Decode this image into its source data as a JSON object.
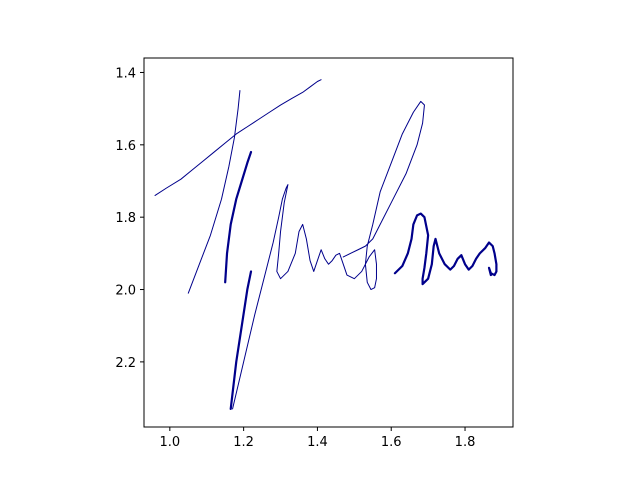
{
  "chart_data": {
    "type": "line",
    "title": "",
    "xlabel": "",
    "ylabel": "",
    "xlim": [
      0.93,
      1.93
    ],
    "ylim": [
      2.38,
      1.36
    ],
    "y_inverted": true,
    "grid": false,
    "xticks": [
      {
        "value": 1.0,
        "label": "1.0"
      },
      {
        "value": 1.2,
        "label": "1.2"
      },
      {
        "value": 1.4,
        "label": "1.4"
      },
      {
        "value": 1.6,
        "label": "1.6"
      },
      {
        "value": 1.8,
        "label": "1.8"
      }
    ],
    "yticks": [
      {
        "value": 1.4,
        "label": "1.4"
      },
      {
        "value": 1.6,
        "label": "1.6"
      },
      {
        "value": 1.8,
        "label": "1.8"
      },
      {
        "value": 2.0,
        "label": "2.0"
      },
      {
        "value": 2.2,
        "label": "2.2"
      }
    ],
    "line_color": "#00008b",
    "series": [
      {
        "weight": "thin",
        "x": [
          0.96,
          0.99,
          1.03,
          1.06,
          1.09,
          1.12,
          1.15,
          1.18,
          1.21,
          1.24,
          1.27,
          1.3,
          1.33,
          1.36,
          1.38,
          1.4,
          1.41
        ],
        "y": [
          1.74,
          1.72,
          1.695,
          1.67,
          1.645,
          1.62,
          1.595,
          1.57,
          1.55,
          1.53,
          1.51,
          1.49,
          1.472,
          1.455,
          1.44,
          1.425,
          1.42
        ]
      },
      {
        "weight": "thin",
        "x": [
          1.05,
          1.08,
          1.11,
          1.14,
          1.16,
          1.175,
          1.185,
          1.19
        ],
        "y": [
          2.01,
          1.93,
          1.85,
          1.75,
          1.66,
          1.58,
          1.5,
          1.45
        ]
      },
      {
        "weight": "thick",
        "x": [
          1.15,
          1.155,
          1.165,
          1.18,
          1.195,
          1.21,
          1.22
        ],
        "y": [
          1.98,
          1.9,
          1.82,
          1.75,
          1.7,
          1.65,
          1.62
        ]
      },
      {
        "weight": "thin",
        "x": [
          1.17,
          1.2,
          1.23,
          1.26,
          1.28,
          1.295,
          1.305,
          1.315,
          1.32,
          1.31,
          1.3,
          1.295,
          1.29,
          1.3,
          1.32,
          1.34,
          1.35,
          1.36,
          1.37,
          1.38,
          1.39,
          1.4,
          1.41,
          1.42,
          1.43,
          1.44,
          1.45,
          1.46,
          1.47,
          1.48,
          1.5,
          1.52,
          1.54,
          1.555,
          1.56,
          1.56,
          1.555,
          1.545,
          1.535,
          1.53,
          1.535,
          1.55,
          1.57,
          1.6,
          1.63,
          1.66,
          1.68,
          1.69,
          1.685,
          1.67,
          1.64,
          1.6,
          1.57,
          1.55,
          1.53,
          1.51,
          1.49,
          1.47
        ],
        "y": [
          2.33,
          2.2,
          2.07,
          1.95,
          1.87,
          1.8,
          1.75,
          1.72,
          1.71,
          1.76,
          1.84,
          1.9,
          1.95,
          1.97,
          1.95,
          1.9,
          1.84,
          1.82,
          1.86,
          1.92,
          1.95,
          1.92,
          1.89,
          1.915,
          1.93,
          1.92,
          1.905,
          1.9,
          1.93,
          1.96,
          1.97,
          1.95,
          1.91,
          1.89,
          1.93,
          1.97,
          1.995,
          2.0,
          1.98,
          1.93,
          1.88,
          1.82,
          1.73,
          1.65,
          1.57,
          1.51,
          1.48,
          1.49,
          1.54,
          1.6,
          1.68,
          1.76,
          1.82,
          1.86,
          1.88,
          1.89,
          1.9,
          1.91
        ]
      },
      {
        "weight": "thick",
        "x": [
          1.165,
          1.18,
          1.195,
          1.21,
          1.22
        ],
        "y": [
          2.33,
          2.2,
          2.1,
          2.0,
          1.95
        ]
      },
      {
        "weight": "thick",
        "x": [
          1.61,
          1.63,
          1.645,
          1.655,
          1.66,
          1.67,
          1.68,
          1.69,
          1.7,
          1.695,
          1.69,
          1.685,
          1.685,
          1.69,
          1.7,
          1.71,
          1.715,
          1.72,
          1.73,
          1.745,
          1.76,
          1.77,
          1.78,
          1.79,
          1.8,
          1.81,
          1.82,
          1.83,
          1.84,
          1.855,
          1.865,
          1.875,
          1.88,
          1.885,
          1.885,
          1.88,
          1.87,
          1.865,
          1.87
        ],
        "y": [
          1.955,
          1.935,
          1.9,
          1.86,
          1.82,
          1.795,
          1.79,
          1.8,
          1.85,
          1.9,
          1.94,
          1.97,
          1.985,
          1.98,
          1.97,
          1.93,
          1.88,
          1.86,
          1.9,
          1.93,
          1.945,
          1.935,
          1.915,
          1.905,
          1.93,
          1.945,
          1.935,
          1.915,
          1.9,
          1.885,
          1.87,
          1.88,
          1.9,
          1.93,
          1.95,
          1.96,
          1.955,
          1.94,
          1.96
        ]
      }
    ]
  }
}
